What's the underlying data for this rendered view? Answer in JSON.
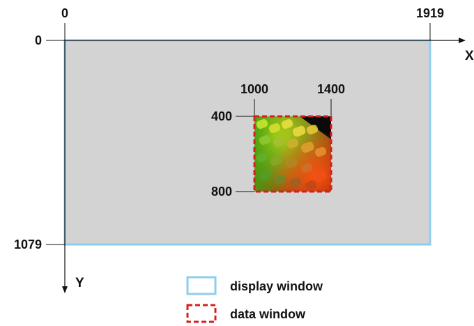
{
  "axes": {
    "x_label": "X",
    "y_label": "Y"
  },
  "display_window": {
    "x_min": "0",
    "x_max": "1919",
    "y_min": "0",
    "y_max": "1079",
    "fill_color": "#d3d3d3",
    "border_color": "#8ecdf0"
  },
  "data_window": {
    "x_min": "1000",
    "x_max": "1400",
    "y_min": "400",
    "y_max": "800",
    "border_color": "#d42020"
  },
  "legend": {
    "display_window_label": "display window",
    "data_window_label": "data window"
  }
}
